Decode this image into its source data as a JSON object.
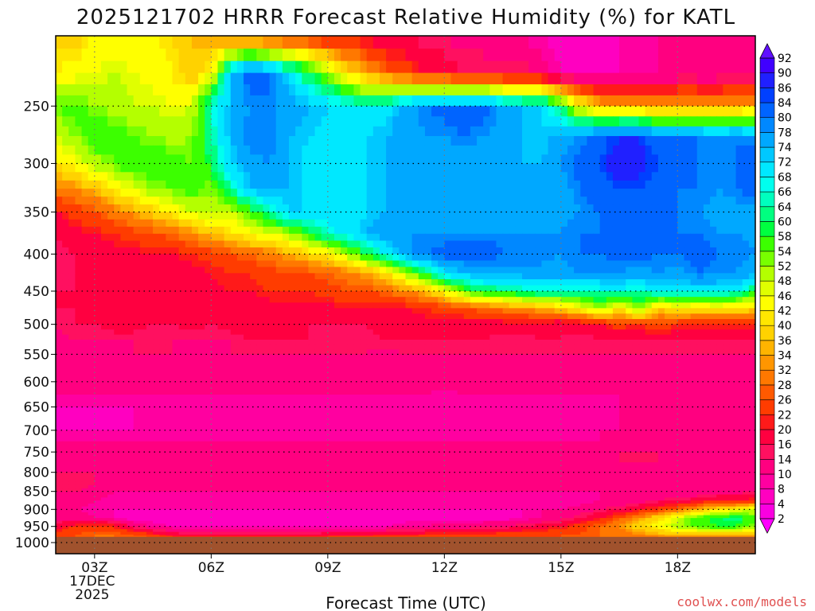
{
  "chart_data": {
    "type": "heatmap",
    "title": "2025121702 HRRR Forecast Relative Humidity (%) for KATL",
    "xlabel": "Forecast Time (UTC)",
    "ylabel": "",
    "credit": "coolwx.com/models",
    "x_hours": [
      2,
      2.5,
      3,
      3.5,
      4,
      4.5,
      5,
      5.5,
      6,
      6.5,
      7,
      7.5,
      8,
      8.5,
      9,
      9.5,
      10,
      10.5,
      11,
      11.5,
      12,
      12.5,
      13,
      13.5,
      14,
      14.5,
      15,
      15.5,
      16,
      16.5,
      17,
      17.5,
      18,
      18.5,
      19,
      19.5,
      20
    ],
    "x_ticks": [
      {
        "hour": 3,
        "label": "03Z",
        "sub1": "17DEC",
        "sub2": "2025"
      },
      {
        "hour": 6,
        "label": "06Z"
      },
      {
        "hour": 9,
        "label": "09Z"
      },
      {
        "hour": 12,
        "label": "12Z"
      },
      {
        "hour": 15,
        "label": "15Z"
      },
      {
        "hour": 18,
        "label": "18Z"
      }
    ],
    "y_levels_hpa": [
      200,
      225,
      250,
      275,
      300,
      325,
      350,
      375,
      400,
      425,
      450,
      475,
      500,
      525,
      550,
      575,
      600,
      625,
      650,
      675,
      700,
      725,
      750,
      775,
      800,
      825,
      850,
      875,
      900,
      925,
      950,
      975,
      985
    ],
    "y_ticks": [
      "250",
      "300",
      "350",
      "400",
      "450",
      "500",
      "550",
      "600",
      "650",
      "700",
      "750",
      "800",
      "850",
      "900",
      "950",
      "1000"
    ],
    "ylim_hpa": [
      200,
      1000
    ],
    "scale": "log-pressure",
    "ground_hpa": 982,
    "grid": true,
    "colorbar": {
      "position": "right",
      "levels": [
        2,
        4,
        8,
        10,
        14,
        16,
        20,
        22,
        26,
        28,
        32,
        34,
        36,
        40,
        42,
        46,
        48,
        52,
        54,
        58,
        60,
        64,
        66,
        68,
        72,
        74,
        78,
        80,
        84,
        86,
        90,
        92
      ],
      "colors": [
        "#ff00ff",
        "#fa00e0",
        "#ff00c0",
        "#ff00a0",
        "#ff0080",
        "#ff1060",
        "#ff0040",
        "#ff1a1a",
        "#ff3c00",
        "#ff5a00",
        "#ff7800",
        "#ff9600",
        "#ffb400",
        "#ffd200",
        "#ffe600",
        "#ffff00",
        "#e0ff00",
        "#b4ff00",
        "#78ff00",
        "#3cff00",
        "#00ff40",
        "#00ff80",
        "#00ffbe",
        "#00ffee",
        "#00e8ff",
        "#00c8ff",
        "#00a8ff",
        "#0088ff",
        "#0064ff",
        "#0040ff",
        "#2020ff",
        "#4000ff",
        "#6010ff"
      ]
    },
    "colors": {
      "ground": "#a0522d",
      "frame": "#000000"
    },
    "rh_grid": [
      [
        38,
        38,
        42,
        44,
        44,
        42,
        40,
        36,
        32,
        28,
        26,
        24,
        24,
        22,
        20,
        20,
        18,
        16,
        16,
        14,
        14,
        12,
        12,
        10,
        10,
        8,
        6,
        4,
        6,
        8,
        8,
        10,
        10,
        12,
        12,
        12,
        12
      ],
      [
        42,
        44,
        46,
        48,
        46,
        44,
        42,
        36,
        44,
        72,
        84,
        80,
        70,
        60,
        50,
        40,
        34,
        28,
        24,
        20,
        18,
        16,
        16,
        16,
        16,
        12,
        8,
        6,
        6,
        8,
        10,
        10,
        10,
        10,
        10,
        12,
        12
      ],
      [
        54,
        56,
        52,
        50,
        48,
        48,
        46,
        48,
        66,
        74,
        78,
        80,
        76,
        74,
        72,
        70,
        68,
        70,
        76,
        80,
        82,
        82,
        82,
        76,
        74,
        72,
        60,
        44,
        36,
        34,
        34,
        32,
        34,
        34,
        32,
        34,
        36
      ],
      [
        48,
        52,
        58,
        56,
        54,
        52,
        50,
        52,
        64,
        74,
        80,
        80,
        74,
        72,
        70,
        70,
        72,
        74,
        76,
        78,
        78,
        80,
        78,
        76,
        74,
        72,
        76,
        78,
        82,
        86,
        86,
        80,
        80,
        80,
        78,
        80,
        78
      ],
      [
        40,
        44,
        50,
        54,
        58,
        58,
        56,
        54,
        60,
        72,
        76,
        78,
        74,
        70,
        70,
        70,
        72,
        74,
        76,
        76,
        76,
        76,
        76,
        76,
        74,
        74,
        78,
        82,
        84,
        90,
        88,
        84,
        80,
        80,
        78,
        80,
        84
      ],
      [
        30,
        32,
        36,
        42,
        46,
        52,
        54,
        56,
        52,
        64,
        74,
        76,
        74,
        70,
        70,
        70,
        72,
        74,
        74,
        76,
        76,
        76,
        76,
        76,
        74,
        74,
        76,
        80,
        82,
        84,
        84,
        82,
        80,
        80,
        78,
        80,
        82
      ],
      [
        20,
        24,
        26,
        30,
        34,
        38,
        42,
        48,
        50,
        48,
        56,
        64,
        72,
        72,
        70,
        70,
        72,
        74,
        76,
        76,
        76,
        76,
        76,
        76,
        76,
        76,
        76,
        78,
        80,
        80,
        80,
        80,
        80,
        78,
        76,
        76,
        74
      ],
      [
        16,
        18,
        20,
        22,
        24,
        26,
        28,
        32,
        36,
        40,
        44,
        46,
        50,
        58,
        66,
        70,
        74,
        76,
        78,
        78,
        78,
        78,
        78,
        78,
        78,
        78,
        78,
        80,
        80,
        80,
        80,
        80,
        80,
        80,
        78,
        78,
        76
      ],
      [
        14,
        16,
        18,
        18,
        18,
        20,
        20,
        22,
        24,
        26,
        28,
        30,
        34,
        38,
        42,
        50,
        60,
        68,
        76,
        80,
        82,
        82,
        84,
        80,
        80,
        80,
        78,
        80,
        80,
        82,
        82,
        80,
        80,
        82,
        80,
        80,
        78
      ],
      [
        14,
        16,
        16,
        18,
        18,
        18,
        16,
        18,
        20,
        22,
        22,
        24,
        26,
        26,
        28,
        30,
        34,
        40,
        50,
        60,
        70,
        74,
        76,
        76,
        76,
        76,
        76,
        78,
        78,
        78,
        76,
        78,
        76,
        80,
        78,
        78,
        74
      ],
      [
        16,
        16,
        16,
        18,
        18,
        18,
        18,
        18,
        18,
        20,
        20,
        22,
        22,
        22,
        24,
        26,
        26,
        28,
        32,
        36,
        44,
        54,
        60,
        62,
        64,
        66,
        66,
        64,
        66,
        68,
        64,
        70,
        68,
        70,
        70,
        68,
        60
      ],
      [
        16,
        16,
        18,
        18,
        18,
        18,
        18,
        18,
        16,
        18,
        18,
        18,
        18,
        18,
        18,
        20,
        20,
        20,
        20,
        22,
        24,
        26,
        28,
        30,
        32,
        36,
        38,
        44,
        52,
        40,
        54,
        36,
        44,
        40,
        42,
        40,
        38
      ],
      [
        14,
        16,
        16,
        18,
        18,
        16,
        16,
        18,
        16,
        18,
        18,
        18,
        16,
        16,
        16,
        16,
        16,
        18,
        18,
        18,
        18,
        18,
        18,
        18,
        18,
        18,
        16,
        18,
        20,
        24,
        22,
        26,
        22,
        22,
        22,
        22,
        22
      ],
      [
        12,
        14,
        14,
        14,
        14,
        14,
        14,
        14,
        14,
        14,
        16,
        16,
        16,
        16,
        14,
        14,
        14,
        16,
        16,
        16,
        16,
        16,
        16,
        14,
        14,
        16,
        16,
        14,
        16,
        16,
        16,
        16,
        16,
        16,
        16,
        16,
        16
      ],
      [
        14,
        14,
        12,
        12,
        14,
        14,
        14,
        12,
        12,
        14,
        14,
        14,
        14,
        14,
        14,
        14,
        14,
        12,
        14,
        14,
        14,
        14,
        14,
        14,
        14,
        14,
        14,
        14,
        14,
        14,
        14,
        14,
        14,
        14,
        14,
        14,
        14
      ],
      [
        12,
        12,
        12,
        14,
        14,
        12,
        12,
        12,
        12,
        12,
        12,
        12,
        12,
        12,
        12,
        12,
        12,
        12,
        12,
        12,
        12,
        12,
        12,
        12,
        12,
        12,
        12,
        12,
        12,
        12,
        12,
        12,
        12,
        12,
        12,
        12,
        12
      ],
      [
        12,
        12,
        12,
        12,
        12,
        12,
        12,
        12,
        10,
        10,
        10,
        12,
        12,
        12,
        12,
        12,
        12,
        12,
        12,
        12,
        12,
        12,
        12,
        12,
        12,
        12,
        12,
        12,
        12,
        12,
        12,
        12,
        12,
        12,
        12,
        12,
        12
      ],
      [
        10,
        10,
        10,
        10,
        10,
        10,
        10,
        10,
        10,
        10,
        10,
        10,
        10,
        10,
        10,
        10,
        10,
        10,
        10,
        10,
        8,
        10,
        10,
        10,
        10,
        10,
        10,
        10,
        10,
        10,
        10,
        10,
        10,
        10,
        10,
        10,
        10
      ],
      [
        8,
        8,
        8,
        8,
        8,
        8,
        8,
        8,
        8,
        8,
        8,
        8,
        8,
        8,
        8,
        8,
        8,
        8,
        8,
        8,
        8,
        8,
        8,
        8,
        8,
        8,
        8,
        8,
        8,
        10,
        10,
        10,
        10,
        10,
        10,
        10,
        10
      ],
      [
        6,
        6,
        6,
        6,
        8,
        8,
        8,
        8,
        8,
        8,
        8,
        8,
        8,
        8,
        8,
        8,
        8,
        8,
        8,
        8,
        8,
        8,
        8,
        8,
        8,
        8,
        8,
        8,
        8,
        10,
        10,
        10,
        10,
        10,
        10,
        10,
        10
      ],
      [
        8,
        8,
        8,
        8,
        8,
        8,
        8,
        8,
        8,
        8,
        8,
        8,
        8,
        8,
        8,
        8,
        8,
        8,
        8,
        8,
        8,
        8,
        8,
        8,
        8,
        8,
        8,
        8,
        10,
        10,
        10,
        10,
        10,
        10,
        10,
        10,
        10
      ],
      [
        10,
        10,
        10,
        10,
        10,
        10,
        10,
        10,
        10,
        10,
        10,
        10,
        10,
        10,
        10,
        10,
        10,
        10,
        10,
        10,
        10,
        10,
        10,
        10,
        10,
        10,
        10,
        10,
        10,
        12,
        12,
        12,
        12,
        12,
        12,
        12,
        12
      ],
      [
        12,
        12,
        12,
        12,
        12,
        12,
        12,
        12,
        12,
        12,
        12,
        12,
        12,
        12,
        12,
        12,
        12,
        12,
        12,
        12,
        12,
        12,
        12,
        12,
        12,
        12,
        12,
        12,
        14,
        14,
        14,
        14,
        14,
        12,
        12,
        12,
        12
      ],
      [
        12,
        12,
        12,
        12,
        12,
        12,
        12,
        12,
        12,
        12,
        12,
        12,
        12,
        12,
        12,
        12,
        12,
        12,
        12,
        12,
        12,
        12,
        12,
        12,
        12,
        12,
        12,
        12,
        12,
        14,
        14,
        14,
        12,
        12,
        12,
        12,
        12
      ],
      [
        14,
        14,
        14,
        12,
        12,
        12,
        12,
        12,
        12,
        12,
        12,
        12,
        12,
        12,
        12,
        12,
        12,
        12,
        12,
        12,
        12,
        12,
        12,
        12,
        12,
        12,
        12,
        12,
        12,
        12,
        12,
        12,
        12,
        12,
        12,
        12,
        12
      ],
      [
        16,
        16,
        14,
        12,
        10,
        10,
        10,
        10,
        10,
        10,
        10,
        10,
        10,
        10,
        10,
        10,
        10,
        10,
        10,
        10,
        10,
        10,
        10,
        10,
        10,
        10,
        10,
        10,
        10,
        10,
        10,
        10,
        10,
        10,
        10,
        10,
        10
      ],
      [
        14,
        14,
        12,
        10,
        10,
        10,
        10,
        10,
        10,
        10,
        10,
        10,
        10,
        10,
        10,
        10,
        10,
        10,
        10,
        10,
        10,
        10,
        10,
        10,
        10,
        10,
        10,
        10,
        10,
        10,
        10,
        10,
        10,
        10,
        12,
        12,
        14
      ],
      [
        12,
        12,
        10,
        8,
        8,
        8,
        8,
        8,
        8,
        8,
        8,
        8,
        8,
        8,
        8,
        8,
        8,
        8,
        8,
        8,
        8,
        8,
        8,
        8,
        8,
        8,
        8,
        8,
        10,
        10,
        12,
        14,
        16,
        18,
        20,
        20,
        22
      ],
      [
        10,
        10,
        8,
        8,
        8,
        8,
        8,
        8,
        8,
        8,
        8,
        8,
        8,
        8,
        8,
        8,
        8,
        8,
        8,
        8,
        8,
        8,
        8,
        8,
        8,
        10,
        10,
        12,
        14,
        16,
        20,
        24,
        28,
        34,
        40,
        44,
        48
      ],
      [
        12,
        12,
        10,
        8,
        6,
        6,
        6,
        6,
        6,
        6,
        6,
        6,
        6,
        6,
        6,
        6,
        6,
        6,
        6,
        6,
        6,
        6,
        6,
        6,
        8,
        10,
        12,
        16,
        20,
        26,
        32,
        40,
        48,
        56,
        60,
        62,
        54
      ],
      [
        18,
        22,
        24,
        22,
        14,
        10,
        8,
        8,
        8,
        8,
        8,
        8,
        8,
        8,
        8,
        8,
        8,
        8,
        10,
        10,
        12,
        12,
        14,
        14,
        16,
        18,
        20,
        24,
        28,
        32,
        38,
        44,
        50,
        56,
        58,
        58,
        52
      ],
      [
        22,
        26,
        28,
        28,
        26,
        22,
        18,
        16,
        16,
        16,
        16,
        16,
        16,
        16,
        18,
        18,
        18,
        20,
        20,
        22,
        22,
        22,
        22,
        24,
        24,
        24,
        26,
        26,
        28,
        30,
        32,
        34,
        36,
        36,
        36,
        36,
        36
      ],
      [
        24,
        26,
        28,
        28,
        28,
        28,
        26,
        26,
        26,
        26,
        26,
        26,
        26,
        26,
        26,
        26,
        26,
        26,
        26,
        26,
        26,
        26,
        26,
        26,
        26,
        26,
        26,
        28,
        28,
        30,
        30,
        30,
        30,
        30,
        30,
        30,
        30
      ]
    ]
  }
}
